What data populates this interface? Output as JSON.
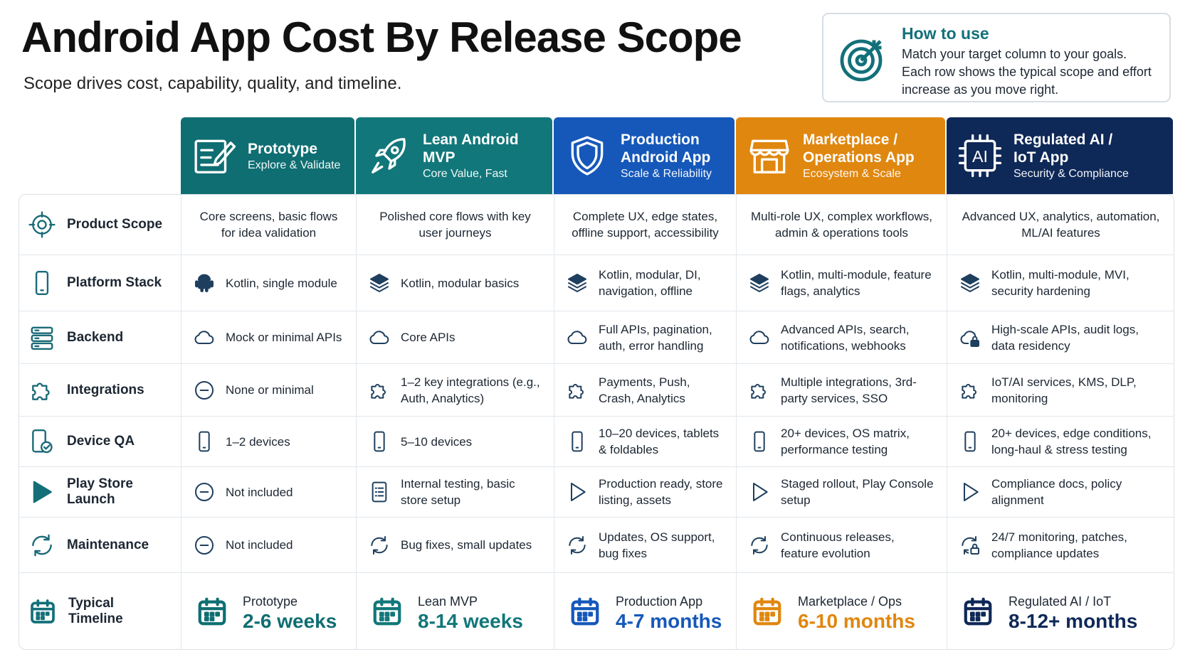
{
  "header": {
    "title": "Android App Cost By Release Scope",
    "subtitle": "Scope drives cost, capability, quality, and timeline."
  },
  "how_to": {
    "title": "How to use",
    "text": "Match your target column to your goals. Each row shows the typical scope and effort increase as you move right."
  },
  "table": {
    "columns": [
      {
        "name": "Prototype",
        "subtitle": "Explore & Validate",
        "color": "#0f6e72"
      },
      {
        "name": "Lean Android MVP",
        "subtitle": "Core Value, Fast",
        "color": "#12777a"
      },
      {
        "name": "Production Android App",
        "subtitle": "Scale & Reliability",
        "color": "#1558ba"
      },
      {
        "name": "Marketplace / Operations App",
        "subtitle": "Ecosystem & Scale",
        "color": "#e0870f"
      },
      {
        "name": "Regulated AI / IoT App",
        "subtitle": "Security & Compliance",
        "color": "#0e2857",
        "icon_label": "AI"
      }
    ],
    "rows": [
      {
        "label": "Product Scope",
        "cells": [
          "Core screens, basic flows for idea validation",
          "Polished core flows with key user journeys",
          "Complete UX, edge states, offline support, accessibility",
          "Multi-role UX, complex workflows, admin & operations tools",
          "Advanced UX, analytics, automation, ML/AI features"
        ]
      },
      {
        "label": "Platform Stack",
        "cells": [
          "Kotlin, single module",
          "Kotlin, modular basics",
          "Kotlin, modular, DI, navigation, offline",
          "Kotlin, multi-module, feature flags, analytics",
          "Kotlin, multi-module, MVI, security hardening"
        ]
      },
      {
        "label": "Backend",
        "cells": [
          "Mock or minimal APIs",
          "Core APIs",
          "Full APIs, pagination, auth, error handling",
          "Advanced APIs, search, notifications, webhooks",
          "High-scale APIs, audit logs, data residency"
        ]
      },
      {
        "label": "Integrations",
        "cells": [
          "None or minimal",
          "1–2 key integrations (e.g., Auth, Analytics)",
          "Payments, Push, Crash, Analytics",
          "Multiple integrations, 3rd-party services, SSO",
          "IoT/AI services, KMS, DLP, monitoring"
        ]
      },
      {
        "label": "Device QA",
        "cells": [
          "1–2 devices",
          "5–10 devices",
          "10–20 devices, tablets & foldables",
          "20+ devices, OS matrix, performance testing",
          "20+ devices, edge conditions, long-haul & stress testing"
        ]
      },
      {
        "label": "Play Store Launch",
        "cells": [
          "Not included",
          "Internal testing, basic store setup",
          "Production ready, store listing, assets",
          "Staged rollout, Play Console setup",
          "Compliance docs, policy alignment"
        ]
      },
      {
        "label": "Maintenance",
        "cells": [
          "Not included",
          "Bug fixes, small updates",
          "Updates, OS support, bug fixes",
          "Continuous releases, feature evolution",
          "24/7 monitoring, patches, compliance updates"
        ]
      }
    ],
    "timeline": {
      "label": "Typical Timeline",
      "cells": [
        {
          "name": "Prototype",
          "duration": "2-6 weeks"
        },
        {
          "name": "Lean MVP",
          "duration": "8-14 weeks"
        },
        {
          "name": "Production App",
          "duration": "4-7 months"
        },
        {
          "name": "Marketplace / Ops",
          "duration": "6-10 months"
        },
        {
          "name": "Regulated AI / IoT",
          "duration": "8-12+ months"
        }
      ]
    }
  }
}
